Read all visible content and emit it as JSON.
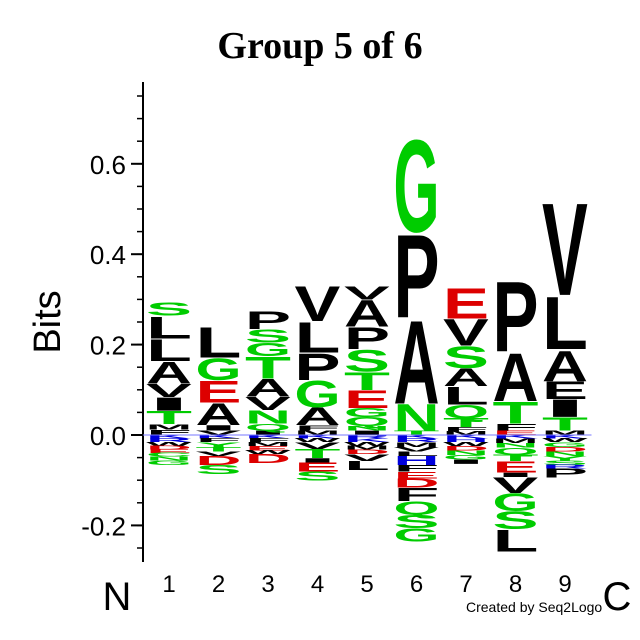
{
  "chart_data": {
    "type": "sequence-logo",
    "title": "Group 5 of 6",
    "ylabel": "Bits",
    "ylim": [
      -0.28,
      0.78
    ],
    "yticks": [
      -0.2,
      0.0,
      0.2,
      0.4,
      0.6
    ],
    "ytick_labels": [
      "-0.2",
      "0.0",
      "0.2",
      "0.4",
      "0.6"
    ],
    "positions": [
      "1",
      "2",
      "3",
      "4",
      "5",
      "6",
      "7",
      "8",
      "9"
    ],
    "n_label": "N",
    "c_label": "C",
    "credit": "Created by Seq2Logo",
    "colors": {
      "green": "#00cc00",
      "black": "#000000",
      "red": "#dd0000",
      "blue": "#0000dd"
    },
    "columns": [
      {
        "position": "1",
        "above": [
          {
            "letter": "S",
            "height": 0.03,
            "color": "green"
          },
          {
            "letter": "L",
            "height": 0.05,
            "color": "black"
          },
          {
            "letter": "L",
            "height": 0.05,
            "color": "black"
          },
          {
            "letter": "A",
            "height": 0.05,
            "color": "black"
          },
          {
            "letter": "V",
            "height": 0.03,
            "color": "black"
          },
          {
            "letter": "I",
            "height": 0.03,
            "color": "black"
          },
          {
            "letter": "T",
            "height": 0.03,
            "color": "green"
          },
          {
            "letter": "M",
            "height": 0.012,
            "color": "black"
          },
          {
            "letter": "F",
            "height": 0.012,
            "color": "black"
          }
        ],
        "below": [
          {
            "letter": "K",
            "height": 0.008,
            "color": "blue"
          },
          {
            "letter": "R",
            "height": 0.008,
            "color": "blue"
          },
          {
            "letter": "W",
            "height": 0.008,
            "color": "black"
          },
          {
            "letter": "D",
            "height": 0.008,
            "color": "red"
          },
          {
            "letter": "E",
            "height": 0.008,
            "color": "red"
          },
          {
            "letter": "C",
            "height": 0.008,
            "color": "green"
          },
          {
            "letter": "N",
            "height": 0.008,
            "color": "green"
          },
          {
            "letter": "G",
            "height": 0.01,
            "color": "green"
          }
        ]
      },
      {
        "position": "2",
        "above": [
          {
            "letter": "L",
            "height": 0.07,
            "color": "black"
          },
          {
            "letter": "G",
            "height": 0.05,
            "color": "green"
          },
          {
            "letter": "E",
            "height": 0.05,
            "color": "red"
          },
          {
            "letter": "A",
            "height": 0.05,
            "color": "black"
          },
          {
            "letter": "I",
            "height": 0.012,
            "color": "black"
          },
          {
            "letter": "V",
            "height": 0.01,
            "color": "black"
          }
        ],
        "below": [
          {
            "letter": "K",
            "height": 0.008,
            "color": "blue"
          },
          {
            "letter": "F",
            "height": 0.008,
            "color": "black"
          },
          {
            "letter": "Y",
            "height": 0.01,
            "color": "green"
          },
          {
            "letter": "T",
            "height": 0.01,
            "color": "green"
          },
          {
            "letter": "V",
            "height": 0.01,
            "color": "black"
          },
          {
            "letter": "D",
            "height": 0.02,
            "color": "red"
          },
          {
            "letter": "S",
            "height": 0.02,
            "color": "green"
          }
        ]
      },
      {
        "position": "3",
        "above": [
          {
            "letter": "P",
            "height": 0.04,
            "color": "black"
          },
          {
            "letter": "S",
            "height": 0.03,
            "color": "green"
          },
          {
            "letter": "G",
            "height": 0.03,
            "color": "green"
          },
          {
            "letter": "T",
            "height": 0.05,
            "color": "green"
          },
          {
            "letter": "A",
            "height": 0.04,
            "color": "black"
          },
          {
            "letter": "V",
            "height": 0.03,
            "color": "black"
          },
          {
            "letter": "N",
            "height": 0.03,
            "color": "green"
          },
          {
            "letter": "Q",
            "height": 0.015,
            "color": "green"
          },
          {
            "letter": "I",
            "height": 0.01,
            "color": "black"
          }
        ],
        "below": [
          {
            "letter": "K",
            "height": 0.008,
            "color": "blue"
          },
          {
            "letter": "F",
            "height": 0.008,
            "color": "black"
          },
          {
            "letter": "M",
            "height": 0.008,
            "color": "black"
          },
          {
            "letter": "E",
            "height": 0.01,
            "color": "red"
          },
          {
            "letter": "W",
            "height": 0.008,
            "color": "black"
          },
          {
            "letter": "D",
            "height": 0.02,
            "color": "red"
          }
        ]
      },
      {
        "position": "4",
        "above": [
          {
            "letter": "V",
            "height": 0.08,
            "color": "black"
          },
          {
            "letter": "L",
            "height": 0.07,
            "color": "black"
          },
          {
            "letter": "P",
            "height": 0.06,
            "color": "black"
          },
          {
            "letter": "G",
            "height": 0.06,
            "color": "green"
          },
          {
            "letter": "A",
            "height": 0.04,
            "color": "black"
          },
          {
            "letter": "F",
            "height": 0.012,
            "color": "black"
          },
          {
            "letter": "M",
            "height": 0.01,
            "color": "black"
          }
        ],
        "below": [
          {
            "letter": "K",
            "height": 0.008,
            "color": "blue"
          },
          {
            "letter": "W",
            "height": 0.008,
            "color": "black"
          },
          {
            "letter": "V",
            "height": 0.015,
            "color": "black"
          },
          {
            "letter": "T",
            "height": 0.02,
            "color": "green"
          },
          {
            "letter": "I",
            "height": 0.01,
            "color": "black"
          },
          {
            "letter": "E",
            "height": 0.02,
            "color": "red"
          },
          {
            "letter": "S",
            "height": 0.02,
            "color": "green"
          }
        ]
      },
      {
        "position": "5",
        "above": [
          {
            "letter": "V",
            "height": 0.03,
            "color": "black"
          },
          {
            "letter": "A",
            "height": 0.06,
            "color": "black"
          },
          {
            "letter": "P",
            "height": 0.05,
            "color": "black"
          },
          {
            "letter": "S",
            "height": 0.05,
            "color": "green"
          },
          {
            "letter": "T",
            "height": 0.04,
            "color": "green"
          },
          {
            "letter": "E",
            "height": 0.04,
            "color": "red"
          },
          {
            "letter": "G",
            "height": 0.02,
            "color": "green"
          },
          {
            "letter": "Q",
            "height": 0.02,
            "color": "green"
          },
          {
            "letter": "N",
            "height": 0.01,
            "color": "green"
          },
          {
            "letter": "I",
            "height": 0.01,
            "color": "black"
          }
        ],
        "below": [
          {
            "letter": "R",
            "height": 0.008,
            "color": "blue"
          },
          {
            "letter": "K",
            "height": 0.008,
            "color": "blue"
          },
          {
            "letter": "W",
            "height": 0.008,
            "color": "black"
          },
          {
            "letter": "M",
            "height": 0.008,
            "color": "black"
          },
          {
            "letter": "D",
            "height": 0.01,
            "color": "red"
          },
          {
            "letter": "V",
            "height": 0.015,
            "color": "black"
          },
          {
            "letter": "L",
            "height": 0.02,
            "color": "black"
          }
        ]
      },
      {
        "position": "6",
        "above": [
          {
            "letter": "G",
            "height": 0.21,
            "color": "green"
          },
          {
            "letter": "P",
            "height": 0.19,
            "color": "black"
          },
          {
            "letter": "A",
            "height": 0.19,
            "color": "black"
          },
          {
            "letter": "N",
            "height": 0.06,
            "color": "green"
          },
          {
            "letter": "T",
            "height": 0.01,
            "color": "green"
          }
        ],
        "below": [
          {
            "letter": "K",
            "height": 0.008,
            "color": "blue"
          },
          {
            "letter": "R",
            "height": 0.008,
            "color": "blue"
          },
          {
            "letter": "M",
            "height": 0.01,
            "color": "black"
          },
          {
            "letter": "V",
            "height": 0.01,
            "color": "black"
          },
          {
            "letter": "L",
            "height": 0.01,
            "color": "black"
          },
          {
            "letter": "H",
            "height": 0.02,
            "color": "blue"
          },
          {
            "letter": "F",
            "height": 0.015,
            "color": "black"
          },
          {
            "letter": "E",
            "height": 0.015,
            "color": "red"
          },
          {
            "letter": "D",
            "height": 0.02,
            "color": "red"
          },
          {
            "letter": "F",
            "height": 0.03,
            "color": "black"
          },
          {
            "letter": "Q",
            "height": 0.03,
            "color": "green"
          },
          {
            "letter": "S",
            "height": 0.03,
            "color": "green"
          },
          {
            "letter": "G",
            "height": 0.03,
            "color": "green"
          }
        ]
      },
      {
        "position": "7",
        "above": [
          {
            "letter": "E",
            "height": 0.07,
            "color": "red"
          },
          {
            "letter": "V",
            "height": 0.06,
            "color": "black"
          },
          {
            "letter": "S",
            "height": 0.05,
            "color": "green"
          },
          {
            "letter": "A",
            "height": 0.04,
            "color": "black"
          },
          {
            "letter": "L",
            "height": 0.04,
            "color": "black"
          },
          {
            "letter": "Q",
            "height": 0.03,
            "color": "green"
          },
          {
            "letter": "T",
            "height": 0.02,
            "color": "green"
          },
          {
            "letter": "F",
            "height": 0.01,
            "color": "black"
          },
          {
            "letter": "M",
            "height": 0.008,
            "color": "black"
          }
        ],
        "below": [
          {
            "letter": "K",
            "height": 0.008,
            "color": "blue"
          },
          {
            "letter": "H",
            "height": 0.008,
            "color": "blue"
          },
          {
            "letter": "W",
            "height": 0.008,
            "color": "black"
          },
          {
            "letter": "D",
            "height": 0.01,
            "color": "red"
          },
          {
            "letter": "N",
            "height": 0.01,
            "color": "green"
          },
          {
            "letter": "G",
            "height": 0.01,
            "color": "green"
          },
          {
            "letter": "I",
            "height": 0.01,
            "color": "black"
          }
        ]
      },
      {
        "position": "8",
        "above": [
          {
            "letter": "P",
            "height": 0.16,
            "color": "black"
          },
          {
            "letter": "A",
            "height": 0.11,
            "color": "black"
          },
          {
            "letter": "T",
            "height": 0.05,
            "color": "green"
          },
          {
            "letter": "F",
            "height": 0.015,
            "color": "black"
          },
          {
            "letter": "E",
            "height": 0.01,
            "color": "red"
          }
        ],
        "below": [
          {
            "letter": "K",
            "height": 0.008,
            "color": "blue"
          },
          {
            "letter": "M",
            "height": 0.01,
            "color": "black"
          },
          {
            "letter": "N",
            "height": 0.01,
            "color": "green"
          },
          {
            "letter": "Q",
            "height": 0.015,
            "color": "green"
          },
          {
            "letter": "T",
            "height": 0.015,
            "color": "green"
          },
          {
            "letter": "E",
            "height": 0.025,
            "color": "red"
          },
          {
            "letter": "I",
            "height": 0.01,
            "color": "black"
          },
          {
            "letter": "V",
            "height": 0.035,
            "color": "black"
          },
          {
            "letter": "G",
            "height": 0.04,
            "color": "green"
          },
          {
            "letter": "S",
            "height": 0.04,
            "color": "green"
          },
          {
            "letter": "L",
            "height": 0.05,
            "color": "black"
          }
        ]
      },
      {
        "position": "9",
        "above": [
          {
            "letter": "V",
            "height": 0.21,
            "color": "black"
          },
          {
            "letter": "L",
            "height": 0.12,
            "color": "black"
          },
          {
            "letter": "A",
            "height": 0.07,
            "color": "black"
          },
          {
            "letter": "E",
            "height": 0.04,
            "color": "black"
          },
          {
            "letter": "I",
            "height": 0.04,
            "color": "black"
          },
          {
            "letter": "T",
            "height": 0.03,
            "color": "green"
          },
          {
            "letter": "M",
            "height": 0.01,
            "color": "black"
          }
        ],
        "below": [
          {
            "letter": "K",
            "height": 0.008,
            "color": "blue"
          },
          {
            "letter": "W",
            "height": 0.008,
            "color": "black"
          },
          {
            "letter": "G",
            "height": 0.01,
            "color": "green"
          },
          {
            "letter": "D",
            "height": 0.01,
            "color": "red"
          },
          {
            "letter": "N",
            "height": 0.01,
            "color": "green"
          },
          {
            "letter": "Y",
            "height": 0.01,
            "color": "green"
          },
          {
            "letter": "S",
            "height": 0.01,
            "color": "green"
          },
          {
            "letter": "R",
            "height": 0.008,
            "color": "blue"
          },
          {
            "letter": "P",
            "height": 0.02,
            "color": "black"
          }
        ]
      }
    ]
  }
}
